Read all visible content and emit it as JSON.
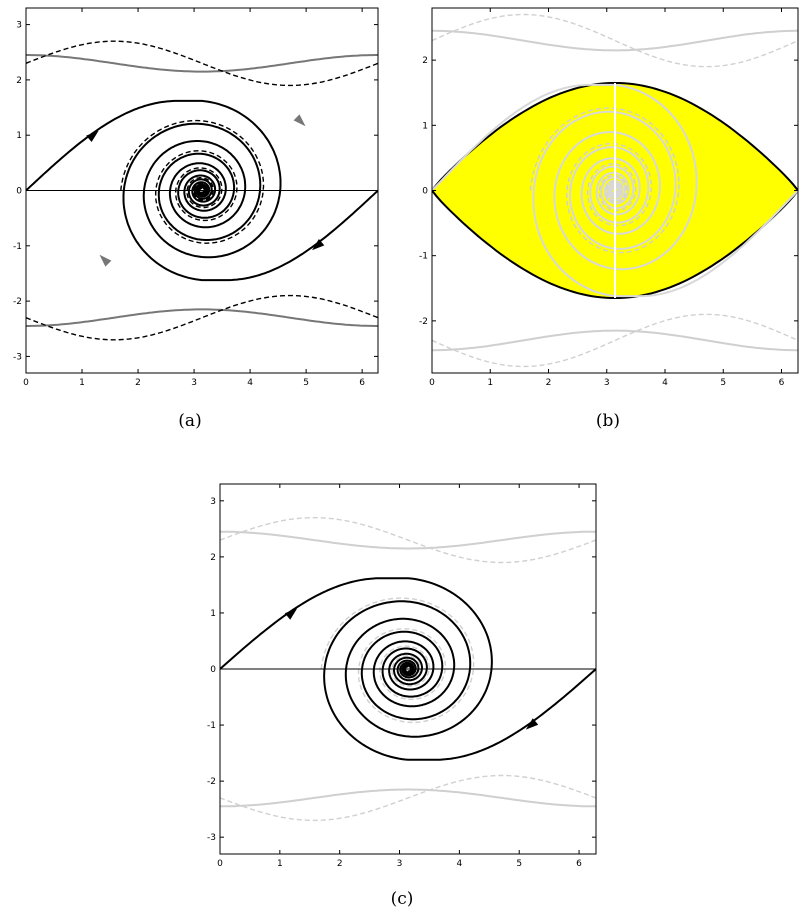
{
  "panels": [
    {
      "caption": "(a)",
      "mode": "a"
    },
    {
      "caption": "(b)",
      "mode": "b"
    },
    {
      "caption": "(c)",
      "mode": "c"
    }
  ],
  "chart_data": [
    {
      "type": "line",
      "xlim": [
        0,
        6.2832
      ],
      "ylim": [
        -3.3,
        3.3
      ],
      "xticks": [
        0,
        1,
        2,
        3,
        4,
        5,
        6
      ],
      "yticks": [
        -3,
        -2,
        -1,
        0,
        1,
        2,
        3
      ],
      "grid": false,
      "series": [
        {
          "kind": "solid-gray",
          "curve": "y = 2.3 + 0.15cos(x)"
        },
        {
          "kind": "solid-gray",
          "curve": "y = -2.3 - 0.15cos(x)"
        },
        {
          "kind": "dashed",
          "curve": "y = 2.3 + 0.4sin(x)"
        },
        {
          "kind": "dashed",
          "curve": "y = -2.3 - 0.4sin(x)"
        },
        {
          "kind": "solid",
          "curve": "separatrix spiral to (3.1416, 0)"
        },
        {
          "kind": "dashed",
          "curve": "spiral to (3.1416, 0)"
        }
      ]
    },
    {
      "type": "area",
      "xlim": [
        0,
        6.2832
      ],
      "ylim": [
        -2.8,
        2.8
      ],
      "xticks": [
        0,
        1,
        2,
        3,
        4,
        5,
        6
      ],
      "yticks": [
        -2,
        -1,
        0,
        1,
        2
      ],
      "grid": false,
      "fill_color": "#ffff00",
      "region": "enclosed between the separatrices from (0,0) to (6.2832,0)",
      "y_extent": [
        -1.65,
        1.65
      ]
    },
    {
      "type": "line",
      "xlim": [
        0,
        6.2832
      ],
      "ylim": [
        -3.3,
        3.3
      ],
      "xticks": [
        0,
        1,
        2,
        3,
        4,
        5,
        6
      ],
      "yticks": [
        -3,
        -2,
        -1,
        0,
        1,
        2,
        3
      ],
      "grid": false,
      "series": [
        {
          "kind": "solid",
          "curve": "separatrix spiral from (0,0) to (3.1416,0)"
        },
        {
          "kind": "solid",
          "curve": "separatrix spiral from (6.2832,0) to (3.1416,0)"
        }
      ]
    }
  ]
}
